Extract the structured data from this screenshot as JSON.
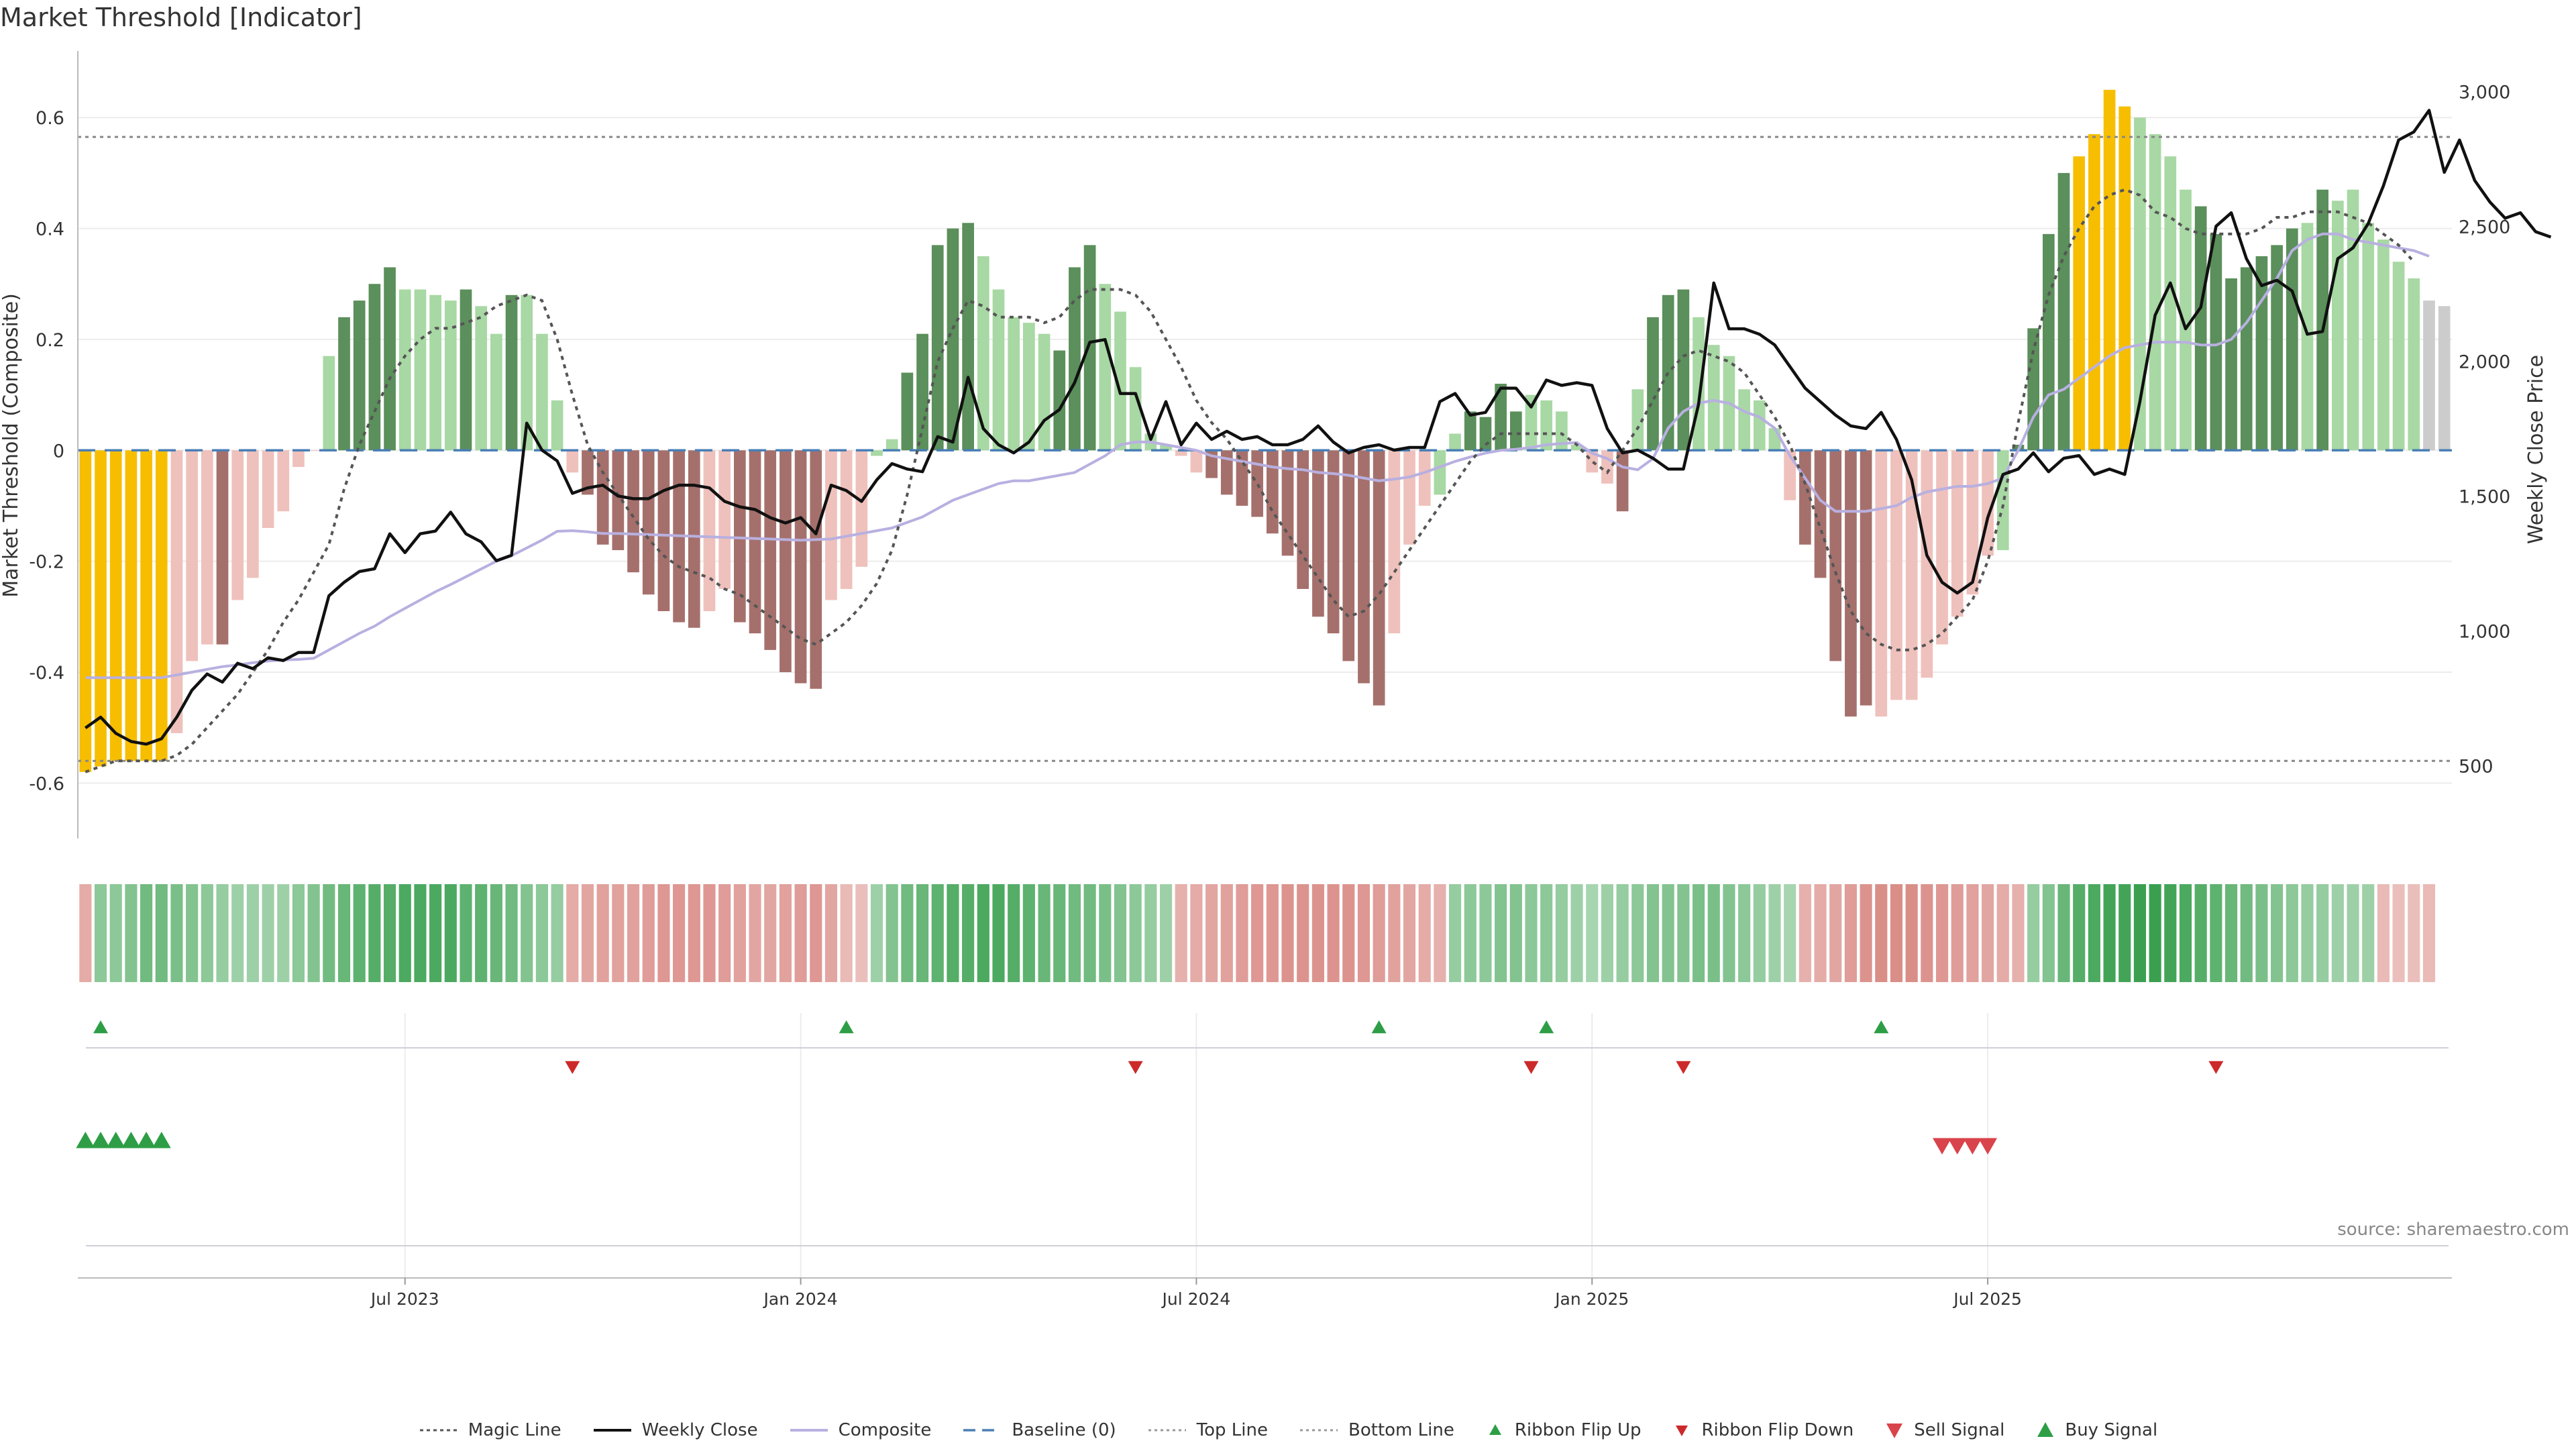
{
  "title": "Market Threshold [Indicator]",
  "source": "source: sharemaestro.com",
  "colors": {
    "gold": "#f7be00",
    "dark_green": "#5b8f5b",
    "light_green": "#a8d8a4",
    "dark_red": "#a5706c",
    "light_red": "#efc1bc",
    "weekly_close": "#111111",
    "composite": "#b8b0e0",
    "magic_line": "#555555",
    "baseline": "#4a7fb5",
    "ribbon_flip_up": "#2e9e46",
    "ribbon_flip_down": "#cc2a2a",
    "sell_signal": "#d9434b",
    "buy_signal": "#2e9e46"
  },
  "legend": [
    {
      "label": "Magic Line",
      "icon": "dotted-dark-line"
    },
    {
      "label": "Weekly Close",
      "icon": "solid-black-line"
    },
    {
      "label": "Composite",
      "icon": "solid-lavender-line"
    },
    {
      "label": "Baseline (0)",
      "icon": "dashed-blue-line"
    },
    {
      "label": "Top Line",
      "icon": "dotted-gray-line"
    },
    {
      "label": "Bottom Line",
      "icon": "dotted-gray-line"
    },
    {
      "label": "Ribbon Flip Up",
      "icon": "green-up-triangle"
    },
    {
      "label": "Ribbon Flip Down",
      "icon": "red-down-triangle"
    },
    {
      "label": "Sell Signal",
      "icon": "red-down-triangle-large"
    },
    {
      "label": "Buy Signal",
      "icon": "green-up-triangle-large"
    }
  ],
  "chart_data": {
    "type": "bar",
    "ylabel": "Market Threshold (Composite)",
    "y2label": "Weekly Close Price",
    "ylim": [
      -0.7,
      0.72
    ],
    "y2lim": [
      230,
      3150
    ],
    "yticks": [
      -0.6,
      -0.4,
      -0.2,
      0,
      0.2,
      0.4,
      0.6
    ],
    "yticklabels": [
      "-0.6",
      "-0.4",
      "-0.2",
      "0",
      "0.2",
      "0.4",
      "0.6"
    ],
    "y2ticks": [
      500,
      1000,
      1500,
      2000,
      2500,
      3000
    ],
    "y2ticklabels": [
      "500",
      "1,000",
      "1,500",
      "2,000",
      "2,500",
      "3,000"
    ],
    "xticks": [
      {
        "week": 21,
        "label": "Jul 2023"
      },
      {
        "week": 47,
        "label": "Jan 2024"
      },
      {
        "week": 73,
        "label": "Jul 2024"
      },
      {
        "week": 99,
        "label": "Jan 2025"
      },
      {
        "week": 125,
        "label": "Jul 2025"
      }
    ],
    "top_line": 0.565,
    "bottom_line": -0.56,
    "baseline": 0,
    "grid": true,
    "legend_position": "bottom",
    "composite_bars": [
      -0.58,
      -0.57,
      -0.56,
      -0.56,
      -0.56,
      -0.56,
      -0.51,
      -0.38,
      -0.35,
      -0.35,
      -0.27,
      -0.23,
      -0.14,
      -0.11,
      -0.03,
      0,
      0.17,
      0.24,
      0.27,
      0.3,
      0.33,
      0.29,
      0.29,
      0.28,
      0.27,
      0.29,
      0.26,
      0.21,
      0.28,
      0.28,
      0.21,
      0.09,
      -0.04,
      -0.08,
      -0.17,
      -0.18,
      -0.22,
      -0.26,
      -0.29,
      -0.31,
      -0.32,
      -0.29,
      -0.25,
      -0.31,
      -0.33,
      -0.36,
      -0.4,
      -0.42,
      -0.43,
      -0.27,
      -0.25,
      -0.21,
      -0.01,
      0.02,
      0.14,
      0.21,
      0.37,
      0.4,
      0.41,
      0.35,
      0.29,
      0.24,
      0.23,
      0.21,
      0.18,
      0.33,
      0.37,
      0.3,
      0.25,
      0.15,
      0.03,
      0.01,
      -0.01,
      -0.04,
      -0.05,
      -0.08,
      -0.1,
      -0.12,
      -0.15,
      -0.19,
      -0.25,
      -0.3,
      -0.33,
      -0.38,
      -0.42,
      -0.46,
      -0.33,
      -0.17,
      -0.1,
      -0.08,
      0.03,
      0.07,
      0.06,
      0.12,
      0.07,
      0.1,
      0.09,
      0.07,
      0.01,
      -0.04,
      -0.06,
      -0.11,
      0.11,
      0.24,
      0.28,
      0.29,
      0.24,
      0.19,
      0.17,
      0.11,
      0.09,
      0.04,
      -0.09,
      -0.17,
      -0.23,
      -0.38,
      -0.48,
      -0.46,
      -0.48,
      -0.45,
      -0.45,
      -0.41,
      -0.35,
      -0.3,
      -0.26,
      -0.19,
      -0.18,
      0.01,
      0.22,
      0.39,
      0.5,
      0.53,
      0.57,
      0.65,
      0.62,
      0.6,
      0.57,
      0.53,
      0.47,
      0.44,
      0.39,
      0.31,
      0.33,
      0.35,
      0.37,
      0.4,
      0.41,
      0.47,
      0.45,
      0.47,
      0.41,
      0.38,
      0.34,
      0.31,
      0.27,
      0.26
    ],
    "bar_colors": [
      "gold",
      "gold",
      "gold",
      "gold",
      "gold",
      "gold",
      "light_red",
      "light_red",
      "light_red",
      "dark_red",
      "light_red",
      "light_red",
      "light_red",
      "light_red",
      "light_red",
      "light_red",
      "light_green",
      "dark_green",
      "dark_green",
      "dark_green",
      "dark_green",
      "light_green",
      "light_green",
      "light_green",
      "light_green",
      "dark_green",
      "light_green",
      "light_green",
      "dark_green",
      "light_green",
      "light_green",
      "light_green",
      "light_red",
      "dark_red",
      "dark_red",
      "dark_red",
      "dark_red",
      "dark_red",
      "dark_red",
      "dark_red",
      "dark_red",
      "light_red",
      "light_red",
      "dark_red",
      "dark_red",
      "dark_red",
      "dark_red",
      "dark_red",
      "dark_red",
      "light_red",
      "light_red",
      "light_red",
      "light_green",
      "light_green",
      "dark_green",
      "dark_green",
      "dark_green",
      "dark_green",
      "dark_green",
      "light_green",
      "light_green",
      "light_green",
      "light_green",
      "light_green",
      "dark_green",
      "dark_green",
      "dark_green",
      "light_green",
      "light_green",
      "light_green",
      "light_green",
      "light_green",
      "light_red",
      "light_red",
      "dark_red",
      "dark_red",
      "dark_red",
      "dark_red",
      "dark_red",
      "dark_red",
      "dark_red",
      "dark_red",
      "dark_red",
      "dark_red",
      "dark_red",
      "dark_red",
      "light_red",
      "light_red",
      "light_red",
      "light_green",
      "light_green",
      "dark_green",
      "dark_green",
      "dark_green",
      "dark_green",
      "light_green",
      "light_green",
      "light_green",
      "light_green",
      "light_red",
      "light_red",
      "dark_red",
      "light_green",
      "dark_green",
      "dark_green",
      "dark_green",
      "light_green",
      "light_green",
      "light_green",
      "light_green",
      "light_green",
      "light_green",
      "light_red",
      "dark_red",
      "dark_red",
      "dark_red",
      "dark_red",
      "dark_red",
      "light_red",
      "light_red",
      "light_red",
      "light_red",
      "light_red",
      "light_red",
      "light_red",
      "light_red",
      "light_green",
      "dark_green",
      "dark_green",
      "dark_green",
      "dark_green",
      "gold",
      "gold",
      "gold",
      "gold",
      "light_green",
      "light_green",
      "light_green",
      "light_green",
      "dark_green",
      "dark_green",
      "dark_green",
      "dark_green",
      "dark_green",
      "dark_green",
      "dark_green",
      "light_green",
      "dark_green",
      "light_green",
      "light_green",
      "light_green",
      "light_green",
      "light_green",
      "light_green"
    ],
    "series": [
      {
        "name": "Weekly Close",
        "axis": "right",
        "values": [
          640,
          680,
          620,
          590,
          580,
          600,
          680,
          780,
          840,
          810,
          880,
          860,
          900,
          890,
          920,
          920,
          1130,
          1180,
          1220,
          1230,
          1360,
          1290,
          1360,
          1370,
          1440,
          1360,
          1330,
          1260,
          1280,
          1770,
          1670,
          1630,
          1510,
          1530,
          1540,
          1500,
          1490,
          1490,
          1520,
          1540,
          1540,
          1530,
          1480,
          1460,
          1450,
          1420,
          1400,
          1420,
          1360,
          1540,
          1520,
          1480,
          1560,
          1620,
          1600,
          1590,
          1720,
          1700,
          1940,
          1750,
          1690,
          1660,
          1700,
          1780,
          1820,
          1920,
          2070,
          2080,
          1880,
          1880,
          1710,
          1850,
          1690,
          1770,
          1710,
          1740,
          1710,
          1720,
          1690,
          1690,
          1710,
          1760,
          1700,
          1660,
          1680,
          1690,
          1670,
          1680,
          1680,
          1850,
          1880,
          1800,
          1810,
          1900,
          1900,
          1830,
          1930,
          1910,
          1920,
          1910,
          1750,
          1660,
          1670,
          1640,
          1600,
          1600,
          1840,
          2290,
          2120,
          2120,
          2100,
          2060,
          1980,
          1900,
          1850,
          1800,
          1760,
          1750,
          1810,
          1710,
          1560,
          1280,
          1180,
          1140,
          1180,
          1420,
          1580,
          1600,
          1660,
          1590,
          1640,
          1650,
          1580,
          1600,
          1580,
          1850,
          2170,
          2290,
          2120,
          2200,
          2500,
          2550,
          2380,
          2280,
          2300,
          2260,
          2100,
          2110,
          2380,
          2420,
          2510,
          2650,
          2820,
          2850,
          2930,
          2700,
          2820,
          2670,
          2590,
          2530,
          2550,
          2480,
          2460
        ]
      },
      {
        "name": "Composite",
        "axis": "left",
        "values": [
          -0.41,
          -0.41,
          -0.41,
          -0.41,
          -0.41,
          -0.41,
          -0.405,
          -0.4,
          -0.395,
          -0.39,
          -0.387,
          -0.383,
          -0.38,
          -0.378,
          -0.377,
          -0.375,
          -0.36,
          -0.345,
          -0.33,
          -0.317,
          -0.3,
          -0.285,
          -0.27,
          -0.255,
          -0.242,
          -0.228,
          -0.214,
          -0.2,
          -0.19,
          -0.176,
          -0.162,
          -0.146,
          -0.145,
          -0.147,
          -0.15,
          -0.15,
          -0.151,
          -0.152,
          -0.153,
          -0.154,
          -0.155,
          -0.156,
          -0.157,
          -0.158,
          -0.159,
          -0.16,
          -0.161,
          -0.162,
          -0.161,
          -0.16,
          -0.155,
          -0.15,
          -0.145,
          -0.14,
          -0.13,
          -0.12,
          -0.105,
          -0.09,
          -0.08,
          -0.07,
          -0.06,
          -0.055,
          -0.055,
          -0.05,
          -0.045,
          -0.04,
          -0.025,
          -0.01,
          0.01,
          0.015,
          0.015,
          0.01,
          0.005,
          0,
          -0.01,
          -0.015,
          -0.02,
          -0.025,
          -0.03,
          -0.033,
          -0.035,
          -0.04,
          -0.042,
          -0.045,
          -0.05,
          -0.055,
          -0.052,
          -0.048,
          -0.04,
          -0.03,
          -0.02,
          -0.012,
          -0.005,
          0,
          0.002,
          0.005,
          0.01,
          0.012,
          0.014,
          -0.005,
          -0.015,
          -0.03,
          -0.035,
          -0.015,
          0.04,
          0.07,
          0.085,
          0.09,
          0.085,
          0.07,
          0.06,
          0.04,
          -0.01,
          -0.05,
          -0.09,
          -0.11,
          -0.11,
          -0.11,
          -0.105,
          -0.1,
          -0.085,
          -0.075,
          -0.07,
          -0.065,
          -0.065,
          -0.06,
          -0.05,
          0.0,
          0.06,
          0.1,
          0.11,
          0.13,
          0.15,
          0.17,
          0.185,
          0.19,
          0.195,
          0.195,
          0.195,
          0.19,
          0.19,
          0.2,
          0.23,
          0.27,
          0.31,
          0.36,
          0.38,
          0.39,
          0.39,
          0.38,
          0.375,
          0.37,
          0.365,
          0.36,
          0.35
        ]
      },
      {
        "name": "Magic Line",
        "axis": "left",
        "values": [
          -0.58,
          -0.57,
          -0.56,
          -0.56,
          -0.56,
          -0.56,
          -0.55,
          -0.53,
          -0.5,
          -0.47,
          -0.44,
          -0.4,
          -0.36,
          -0.31,
          -0.27,
          -0.22,
          -0.17,
          -0.07,
          0.01,
          0.07,
          0.13,
          0.17,
          0.2,
          0.22,
          0.22,
          0.23,
          0.24,
          0.26,
          0.27,
          0.28,
          0.27,
          0.2,
          0.1,
          0.01,
          -0.04,
          -0.08,
          -0.12,
          -0.16,
          -0.19,
          -0.21,
          -0.22,
          -0.23,
          -0.25,
          -0.26,
          -0.28,
          -0.3,
          -0.32,
          -0.34,
          -0.35,
          -0.33,
          -0.31,
          -0.28,
          -0.24,
          -0.18,
          -0.08,
          0.04,
          0.16,
          0.22,
          0.27,
          0.26,
          0.24,
          0.24,
          0.24,
          0.23,
          0.24,
          0.27,
          0.29,
          0.29,
          0.29,
          0.28,
          0.25,
          0.2,
          0.15,
          0.09,
          0.05,
          0.02,
          -0.02,
          -0.06,
          -0.11,
          -0.15,
          -0.19,
          -0.23,
          -0.27,
          -0.3,
          -0.29,
          -0.26,
          -0.22,
          -0.18,
          -0.14,
          -0.1,
          -0.06,
          -0.02,
          0.01,
          0.03,
          0.03,
          0.03,
          0.03,
          0.03,
          0.01,
          -0.02,
          -0.04,
          0.0,
          0.04,
          0.09,
          0.14,
          0.17,
          0.18,
          0.17,
          0.16,
          0.14,
          0.1,
          0.06,
          0.01,
          -0.06,
          -0.14,
          -0.22,
          -0.29,
          -0.33,
          -0.35,
          -0.36,
          -0.36,
          -0.35,
          -0.33,
          -0.3,
          -0.27,
          -0.2,
          -0.1,
          0.05,
          0.18,
          0.28,
          0.35,
          0.4,
          0.44,
          0.46,
          0.47,
          0.46,
          0.43,
          0.42,
          0.4,
          0.39,
          0.39,
          0.39,
          0.39,
          0.4,
          0.42,
          0.42,
          0.43,
          0.43,
          0.43,
          0.42,
          0.41,
          0.39,
          0.37,
          0.34
        ]
      }
    ],
    "ribbon_strength": [
      -0.5,
      0.55,
      0.55,
      0.6,
      0.7,
      0.7,
      0.65,
      0.6,
      0.55,
      0.5,
      0.45,
      0.45,
      0.45,
      0.45,
      0.55,
      0.6,
      0.7,
      0.75,
      0.8,
      0.85,
      0.85,
      0.9,
      0.9,
      0.9,
      0.9,
      0.8,
      0.8,
      0.75,
      0.7,
      0.6,
      0.55,
      0.5,
      -0.5,
      -0.55,
      -0.6,
      -0.6,
      -0.6,
      -0.65,
      -0.7,
      -0.7,
      -0.7,
      -0.7,
      -0.65,
      -0.6,
      -0.55,
      -0.55,
      -0.6,
      -0.65,
      -0.7,
      -0.55,
      -0.35,
      -0.3,
      0.45,
      0.6,
      0.7,
      0.75,
      0.8,
      0.85,
      0.85,
      0.9,
      0.9,
      0.85,
      0.8,
      0.75,
      0.75,
      0.7,
      0.7,
      0.65,
      0.6,
      0.55,
      0.5,
      0.45,
      -0.45,
      -0.5,
      -0.55,
      -0.6,
      -0.65,
      -0.7,
      -0.7,
      -0.75,
      -0.75,
      -0.75,
      -0.75,
      -0.75,
      -0.7,
      -0.65,
      -0.6,
      -0.55,
      -0.5,
      -0.45,
      0.5,
      0.55,
      0.55,
      0.6,
      0.6,
      0.55,
      0.55,
      0.5,
      0.45,
      0.4,
      0.45,
      0.5,
      0.55,
      0.6,
      0.6,
      0.6,
      0.65,
      0.65,
      0.6,
      0.55,
      0.5,
      0.45,
      0.4,
      -0.45,
      -0.5,
      -0.55,
      -0.65,
      -0.75,
      -0.8,
      -0.8,
      -0.8,
      -0.75,
      -0.7,
      -0.65,
      -0.6,
      -0.55,
      -0.5,
      -0.45,
      0.5,
      0.6,
      0.75,
      0.85,
      0.9,
      0.95,
      0.95,
      1.0,
      1.0,
      0.95,
      0.9,
      0.85,
      0.8,
      0.75,
      0.7,
      0.65,
      0.6,
      0.55,
      0.5,
      0.5,
      0.45,
      0.45,
      0.45,
      -0.35,
      -0.3,
      -0.3,
      -0.35
    ],
    "ribbon_flip_up_weeks": [
      1,
      50,
      85,
      96,
      118
    ],
    "ribbon_flip_down_weeks": [
      32,
      69,
      95,
      105,
      140
    ],
    "buy_signal_weeks": [
      0,
      1,
      2,
      3,
      4,
      5
    ],
    "sell_signal_weeks": [
      122,
      123,
      124,
      125
    ]
  }
}
